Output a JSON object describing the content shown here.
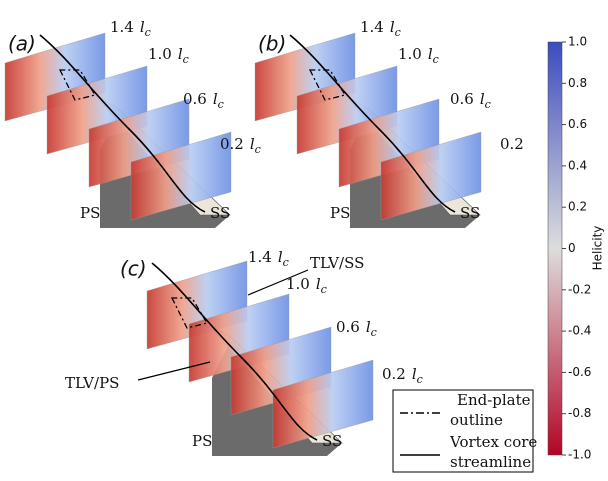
{
  "panels": [
    {
      "label": "(a)",
      "stations": [
        {
          "value": "1.4",
          "symbol": "l",
          "subscript": "c"
        },
        {
          "value": "1.0",
          "symbol": "l",
          "subscript": "c"
        },
        {
          "value": "0.6",
          "symbol": "l",
          "subscript": "c"
        },
        {
          "value": "0.2",
          "symbol": "l",
          "subscript": "c"
        }
      ],
      "ps": "PS",
      "ss": "SS"
    },
    {
      "label": "(b)",
      "stations": [
        {
          "value": "1.4",
          "symbol": "l",
          "subscript": "c"
        },
        {
          "value": "1.0",
          "symbol": "l",
          "subscript": "c"
        },
        {
          "value": "0.6",
          "symbol": "l",
          "subscript": "c"
        },
        {
          "value": "0.2"
        }
      ],
      "ps": "PS",
      "ss": "SS"
    },
    {
      "label": "(c)",
      "stations": [
        {
          "value": "1.4",
          "symbol": "l",
          "subscript": "c"
        },
        {
          "value": "1.0",
          "symbol": "l",
          "subscript": "c"
        },
        {
          "value": "0.6",
          "symbol": "l",
          "subscript": "c"
        },
        {
          "value": "0.2",
          "symbol": "l",
          "subscript": "c"
        }
      ],
      "ps": "PS",
      "ss": "SS",
      "annotations": [
        "TLV/SS",
        "TLV/PS"
      ]
    }
  ],
  "colorbar": {
    "title": "Helicity",
    "lim": [
      -1,
      1
    ],
    "ticks": [
      {
        "value": 1,
        "label": "1.0"
      },
      0.8,
      0.6,
      0.4,
      0.2,
      0,
      -0.2,
      -0.4,
      -0.6,
      -0.8,
      {
        "value": -1,
        "label": "-1.0"
      }
    ]
  },
  "legend": [
    {
      "lines": [
        "End-plate",
        "outline"
      ]
    },
    {
      "lines": [
        "Vortex core",
        "streamline"
      ]
    }
  ]
}
